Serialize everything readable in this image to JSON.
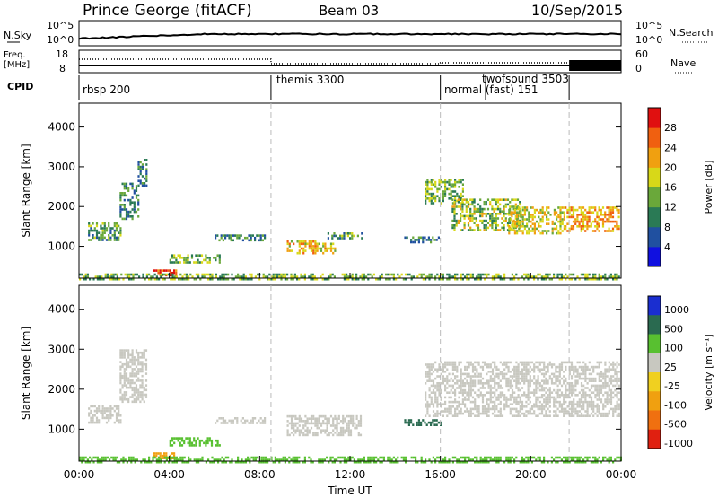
{
  "header": {
    "station": "Prince George (fitACF)",
    "beam": "Beam 03",
    "date": "10/Sep/2015"
  },
  "nsky_panel": {
    "left_label": "N.Sky",
    "left_ticks": [
      "10^5",
      "10^0"
    ],
    "right_label": "N.Search",
    "right_ticks": [
      "10^5",
      "10^0"
    ]
  },
  "freq_panel": {
    "left_label_1": "Freq.",
    "left_label_2": "[MHz]",
    "left_ticks": [
      "18",
      "8"
    ],
    "right_label": "Nave",
    "right_ticks": [
      "60",
      "0"
    ]
  },
  "cpid": {
    "label": "CPID",
    "modes": [
      {
        "name": "rbsp 200",
        "start_hour": 0.0
      },
      {
        "name": "themis 3300",
        "start_hour": 8.5
      },
      {
        "name": "normal (fast) 151",
        "start_hour": 16.0
      },
      {
        "name": "twofsound 3503",
        "start_hour": 18.0
      }
    ]
  },
  "chart_data": [
    {
      "type": "heatmap",
      "title": "",
      "xlabel": "Time UT",
      "ylabel": "Slant Range [km]",
      "xlim_hours": [
        0,
        24
      ],
      "ylim": [
        200,
        4600
      ],
      "x_ticks": [
        "00:00",
        "04:00",
        "08:00",
        "12:00",
        "16:00",
        "20:00",
        "00:00"
      ],
      "y_ticks": [
        1000,
        2000,
        3000,
        4000
      ],
      "colorbar": {
        "label": "Power [dB]",
        "ticks": [
          "4",
          "8",
          "12",
          "16",
          "20",
          "24",
          "28"
        ],
        "colors": [
          "#1010e0",
          "#2050a0",
          "#2a7a55",
          "#6aa83a",
          "#d8d818",
          "#f0a010",
          "#f06010",
          "#e01010"
        ]
      },
      "echo_regions": [
        {
          "t_start": 0.4,
          "t_end": 1.8,
          "range_low": 1150,
          "range_high": 1600,
          "power_db": 12
        },
        {
          "t_start": 1.8,
          "t_end": 2.6,
          "range_low": 1700,
          "range_high": 2600,
          "power_db": 10
        },
        {
          "t_start": 2.6,
          "t_end": 3.0,
          "range_low": 2500,
          "range_high": 3200,
          "power_db": 10
        },
        {
          "t_start": 3.3,
          "t_end": 4.3,
          "range_low": 250,
          "range_high": 420,
          "power_db": 28
        },
        {
          "t_start": 4.0,
          "t_end": 6.2,
          "range_low": 600,
          "range_high": 800,
          "power_db": 14
        },
        {
          "t_start": 6.0,
          "t_end": 8.2,
          "range_low": 1150,
          "range_high": 1300,
          "power_db": 10
        },
        {
          "t_start": 9.2,
          "t_end": 11.3,
          "range_low": 850,
          "range_high": 1150,
          "power_db": 20
        },
        {
          "t_start": 11.0,
          "t_end": 12.5,
          "range_low": 1200,
          "range_high": 1350,
          "power_db": 12
        },
        {
          "t_start": 14.4,
          "t_end": 16.0,
          "range_low": 1100,
          "range_high": 1250,
          "power_db": 10
        },
        {
          "t_start": 15.3,
          "t_end": 17.0,
          "range_low": 2100,
          "range_high": 2700,
          "power_db": 14
        },
        {
          "t_start": 16.5,
          "t_end": 19.5,
          "range_low": 1400,
          "range_high": 2200,
          "power_db": 16
        },
        {
          "t_start": 19.0,
          "t_end": 21.5,
          "range_low": 1300,
          "range_high": 2000,
          "power_db": 18
        },
        {
          "t_start": 21.5,
          "t_end": 23.9,
          "range_low": 1400,
          "range_high": 2000,
          "power_db": 22
        },
        {
          "t_start": 0.0,
          "t_end": 24.0,
          "range_low": 200,
          "range_high": 320,
          "power_db": 14
        }
      ]
    },
    {
      "type": "heatmap",
      "title": "",
      "xlabel": "Time UT",
      "ylabel": "Slant Range [km]",
      "xlim_hours": [
        0,
        24
      ],
      "ylim": [
        200,
        4600
      ],
      "x_ticks": [
        "00:00",
        "04:00",
        "08:00",
        "12:00",
        "16:00",
        "20:00",
        "00:00"
      ],
      "y_ticks": [
        1000,
        2000,
        3000,
        4000
      ],
      "colorbar": {
        "label": "Velocity [m s^-1]",
        "ticks": [
          "1000",
          "500",
          "100",
          "25",
          "-25",
          "-100",
          "-500",
          "-1000"
        ],
        "colors": [
          "#1a2ed0",
          "#2a6a50",
          "#58c030",
          "#c8c8c0",
          "#f0d020",
          "#f0a010",
          "#f07010",
          "#e02010"
        ]
      },
      "echo_regions": [
        {
          "t_start": 0.4,
          "t_end": 1.8,
          "range_low": 1150,
          "range_high": 1600,
          "velocity": 0
        },
        {
          "t_start": 1.8,
          "t_end": 3.0,
          "range_low": 1700,
          "range_high": 3000,
          "velocity": 0
        },
        {
          "t_start": 3.3,
          "t_end": 4.3,
          "range_low": 250,
          "range_high": 420,
          "velocity": -100
        },
        {
          "t_start": 4.0,
          "t_end": 6.2,
          "range_low": 600,
          "range_high": 800,
          "velocity": 100
        },
        {
          "t_start": 6.0,
          "t_end": 8.2,
          "range_low": 1150,
          "range_high": 1300,
          "velocity": 0
        },
        {
          "t_start": 9.2,
          "t_end": 12.5,
          "range_low": 850,
          "range_high": 1350,
          "velocity": 0
        },
        {
          "t_start": 14.4,
          "t_end": 16.0,
          "range_low": 1100,
          "range_high": 1250,
          "velocity": 500
        },
        {
          "t_start": 15.3,
          "t_end": 23.9,
          "range_low": 1300,
          "range_high": 2700,
          "velocity": 0
        },
        {
          "t_start": 0.0,
          "t_end": 24.0,
          "range_low": 200,
          "range_high": 320,
          "velocity": 100
        }
      ]
    }
  ]
}
